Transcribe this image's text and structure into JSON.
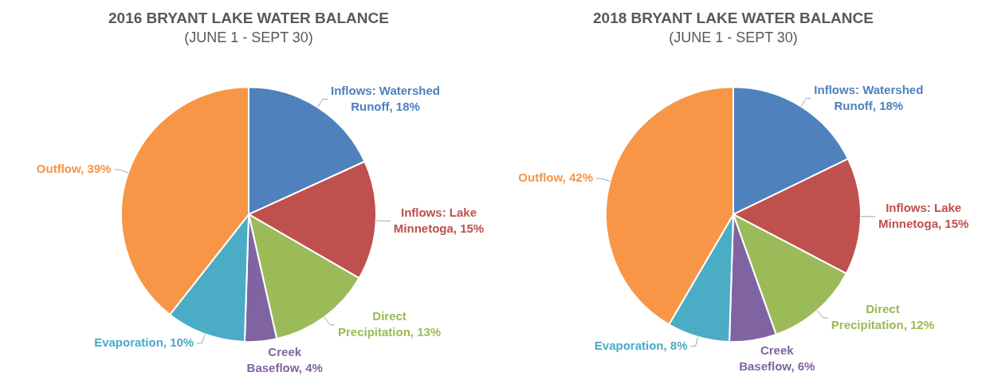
{
  "chart_data": [
    {
      "type": "pie",
      "title": "2016 BRYANT LAKE WATER BALANCE",
      "subtitle": "(JUNE 1 - SEPT 30)",
      "categories": [
        "Inflows: Watershed Runoff",
        "Inflows: Lake Minnetoga",
        "Direct Precipitation",
        "Creek Baseflow",
        "Evaporation",
        "Outflow"
      ],
      "values": [
        18,
        15,
        13,
        4,
        10,
        39
      ],
      "value_labels": [
        "18%",
        "15%",
        "13%",
        "4%",
        "10%",
        "39%"
      ],
      "colors": [
        "#4f81bd",
        "#c0504d",
        "#9bbb59",
        "#8064a2",
        "#4bacc6",
        "#f79646"
      ],
      "legend": false
    },
    {
      "type": "pie",
      "title": "2018 BRYANT LAKE WATER BALANCE",
      "subtitle": "(JUNE 1 - SEPT 30)",
      "categories": [
        "Inflows: Watershed Runoff",
        "Inflows: Lake Minnetoga",
        "Direct Precipitation",
        "Creek Baseflow",
        "Evaporation",
        "Outflow"
      ],
      "values": [
        18,
        15,
        12,
        6,
        8,
        42
      ],
      "value_labels": [
        "18%",
        "15%",
        "12%",
        "6%",
        "8%",
        "42%"
      ],
      "colors": [
        "#4f81bd",
        "#c0504d",
        "#9bbb59",
        "#8064a2",
        "#4bacc6",
        "#f79646"
      ],
      "legend": false
    }
  ]
}
